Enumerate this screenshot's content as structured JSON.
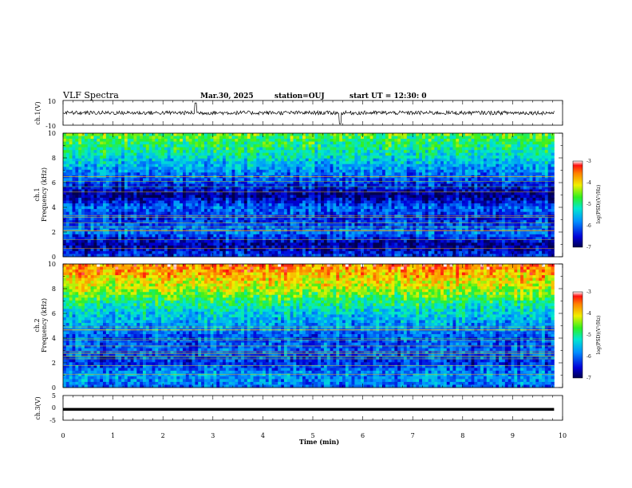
{
  "header": {
    "title": "VLF Spectra",
    "date": "Mar.30, 2025",
    "station": "station=OUJ",
    "start_ut": "start UT =  12:30: 0"
  },
  "chart_data": [
    {
      "type": "line",
      "panel": "ch1-waveform",
      "ylabel": "ch.1(V)",
      "ylim": [
        -10,
        10
      ],
      "ytick_labels": [
        "10",
        "-10"
      ],
      "xlim": [
        0,
        10
      ]
    },
    {
      "type": "heatmap",
      "panel": "ch1-spectrogram",
      "ylabel_lines": [
        "ch.1",
        "Frequency (kHz)"
      ],
      "ylim": [
        0,
        10
      ],
      "ytick_labels": [
        "0",
        "2",
        "4",
        "6",
        "8",
        "10"
      ],
      "xlim": [
        0,
        10
      ],
      "data_end_min": 9.83,
      "colorbar": {
        "label": "log(PSD)(V²/Hz)",
        "range": [
          -7,
          -3
        ],
        "ticks": [
          "-3",
          "-4",
          "-5",
          "-6",
          "-7"
        ]
      },
      "profile": [
        [
          0,
          -6.2
        ],
        [
          1,
          -6.8
        ],
        [
          2,
          -5.9
        ],
        [
          3,
          -6.3
        ],
        [
          4,
          -6.0
        ],
        [
          5,
          -6.9
        ],
        [
          5.6,
          -6.4
        ],
        [
          7,
          -5.8
        ],
        [
          8,
          -5.3
        ],
        [
          10,
          -4.6
        ]
      ]
    },
    {
      "type": "heatmap",
      "panel": "ch2-spectrogram",
      "ylabel_lines": [
        "ch.2",
        "Frequency (kHz)"
      ],
      "ylim": [
        0,
        10
      ],
      "ytick_labels": [
        "0",
        "2",
        "4",
        "6",
        "8",
        "10"
      ],
      "xlim": [
        0,
        10
      ],
      "data_end_min": 9.83,
      "colorbar": {
        "label": "log(PSD)(V²/Hz)",
        "range": [
          -7,
          -3
        ],
        "ticks": [
          "-3",
          "-4",
          "-5",
          "-6",
          "-7"
        ]
      },
      "profile": [
        [
          0,
          -6.0
        ],
        [
          1,
          -5.7
        ],
        [
          2,
          -6.3
        ],
        [
          3,
          -6.0
        ],
        [
          4,
          -6.1
        ],
        [
          6,
          -5.4
        ],
        [
          7,
          -4.9
        ],
        [
          8,
          -4.3
        ],
        [
          9,
          -3.9
        ],
        [
          10,
          -3.5
        ]
      ]
    },
    {
      "type": "line",
      "panel": "ch3-waveform",
      "ylabel": "ch.3(V)",
      "ylim": [
        -5,
        5
      ],
      "ytick_labels": [
        "5",
        "0",
        "-5"
      ],
      "xlim": [
        0,
        10
      ],
      "series": [
        {
          "values": [
            [
              0,
              -0.6
            ],
            [
              9.83,
              -0.6
            ]
          ]
        }
      ]
    }
  ],
  "xaxis": {
    "label": "Time (min)",
    "tick_labels": [
      "0",
      "1",
      "2",
      "3",
      "4",
      "5",
      "6",
      "7",
      "8",
      "9",
      "10"
    ]
  },
  "colors": {
    "line": "#000000",
    "background": "#ffffff"
  }
}
